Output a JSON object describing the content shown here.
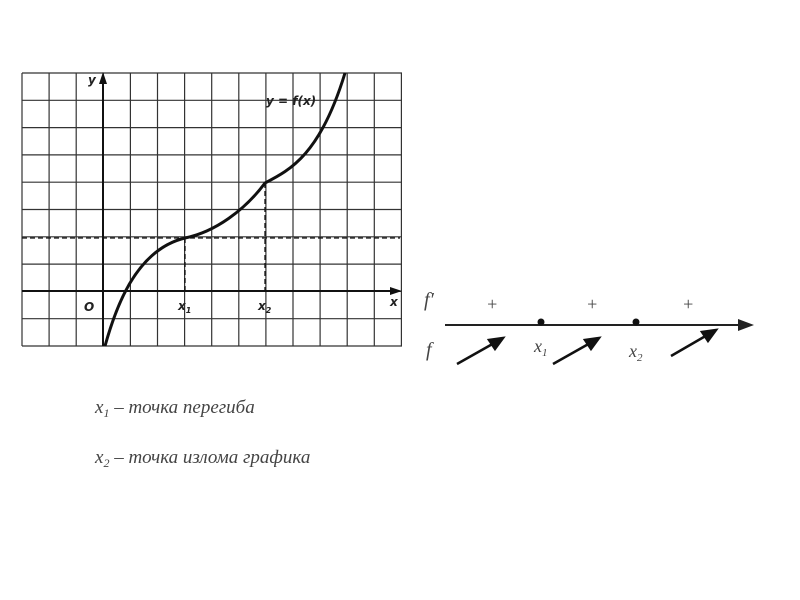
{
  "graph": {
    "y_axis": "y",
    "x_axis": "x",
    "origin": "O",
    "curve_label": "y = f(x)",
    "x1": {
      "base": "x",
      "sub": "1"
    },
    "x2": {
      "base": "x",
      "sub": "2"
    }
  },
  "sign_chart": {
    "derivative": "f′",
    "function": "f",
    "signs": [
      "+",
      "+",
      "+"
    ],
    "x1": {
      "base": "x",
      "sub": "1"
    },
    "x2": {
      "base": "x",
      "sub": "2"
    }
  },
  "notes": [
    {
      "base": "x",
      "sub": "1",
      "text": " – точка перегиба"
    },
    {
      "base": "x",
      "sub": "2",
      "text": " – точка излома графика"
    }
  ]
}
